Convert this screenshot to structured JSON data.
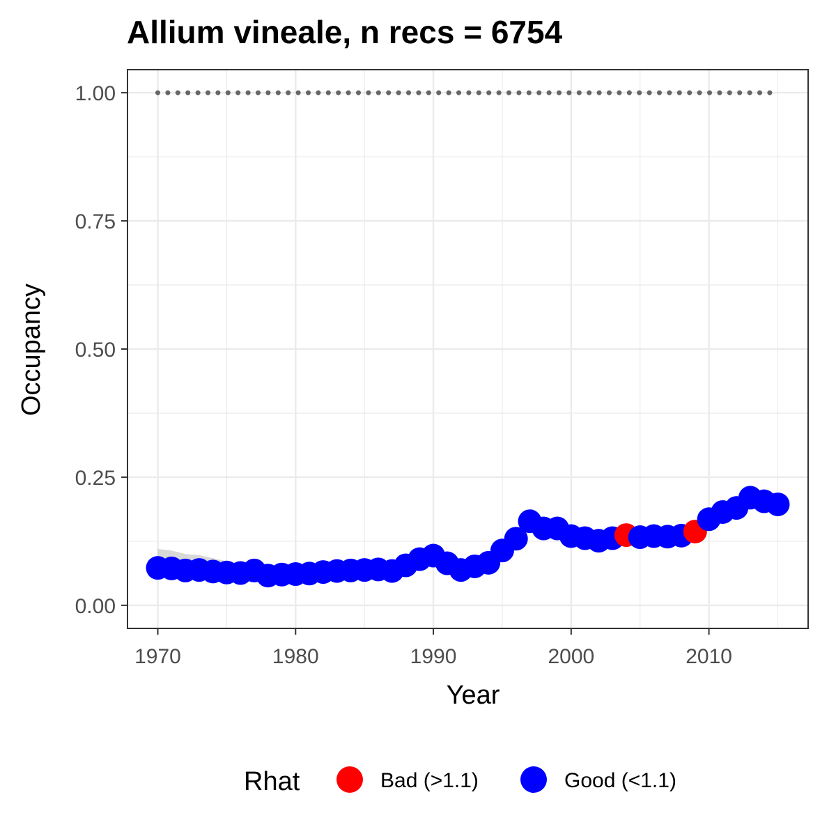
{
  "chart_data": {
    "type": "line",
    "title": "Allium vineale, n recs = 6754",
    "xlabel": "Year",
    "ylabel": "Occupancy",
    "xlim": [
      1967.8,
      2017.2
    ],
    "ylim": [
      -0.045,
      1.045
    ],
    "x_ticks": [
      1970,
      1980,
      1990,
      2000,
      2010
    ],
    "x_tick_labels": [
      "1970",
      "1980",
      "1990",
      "2000",
      "2010"
    ],
    "y_ticks": [
      0,
      0.25,
      0.5,
      0.75,
      1
    ],
    "y_tick_labels": [
      "0.00",
      "0.25",
      "0.50",
      "0.75",
      "1.00"
    ],
    "grid": true,
    "legend": {
      "title": "Rhat",
      "position": "bottom",
      "entries": [
        {
          "key": "bad",
          "label": "Bad (>1.1)",
          "color": "#ff0000"
        },
        {
          "key": "good",
          "label": "Good (<1.1)",
          "color": "#0000ff"
        }
      ]
    },
    "colors": {
      "bad": "#ff0000",
      "good": "#0000ff",
      "reference": "#666666",
      "ribbon": "#bebebe"
    },
    "reference_line": {
      "y": 1.0,
      "x_start": 1970,
      "x_end": 2015,
      "style": "dotted"
    },
    "x": [
      1970,
      1971,
      1972,
      1973,
      1974,
      1975,
      1976,
      1977,
      1978,
      1979,
      1980,
      1981,
      1982,
      1983,
      1984,
      1985,
      1986,
      1987,
      1988,
      1989,
      1990,
      1991,
      1992,
      1993,
      1994,
      1995,
      1996,
      1997,
      1998,
      1999,
      2000,
      2001,
      2002,
      2003,
      2004,
      2005,
      2006,
      2007,
      2008,
      2009,
      2010,
      2011,
      2012,
      2013,
      2014,
      2015
    ],
    "y": [
      0.073,
      0.072,
      0.068,
      0.069,
      0.066,
      0.064,
      0.063,
      0.068,
      0.058,
      0.06,
      0.061,
      0.062,
      0.065,
      0.067,
      0.068,
      0.069,
      0.07,
      0.067,
      0.078,
      0.09,
      0.097,
      0.082,
      0.069,
      0.076,
      0.083,
      0.107,
      0.13,
      0.164,
      0.15,
      0.15,
      0.135,
      0.131,
      0.126,
      0.131,
      0.137,
      0.133,
      0.135,
      0.134,
      0.136,
      0.144,
      0.168,
      0.182,
      0.19,
      0.21,
      0.203,
      0.197
    ],
    "ribbon_upper": [
      0.11,
      0.107,
      0.1,
      0.098,
      0.092,
      0.086,
      0.082,
      0.083,
      0.072,
      0.073,
      0.073,
      0.073,
      0.075,
      0.077,
      0.077,
      0.078,
      0.079,
      0.077,
      0.087,
      0.099,
      0.106,
      0.092,
      0.079,
      0.086,
      0.093,
      0.118,
      0.142,
      0.177,
      0.163,
      0.162,
      0.147,
      0.143,
      0.138,
      0.143,
      0.15,
      0.145,
      0.147,
      0.146,
      0.148,
      0.157,
      0.18,
      0.194,
      0.202,
      0.222,
      0.214,
      0.208
    ],
    "ribbon_lower": [
      0.055,
      0.055,
      0.054,
      0.055,
      0.053,
      0.052,
      0.052,
      0.057,
      0.048,
      0.05,
      0.051,
      0.052,
      0.055,
      0.057,
      0.058,
      0.059,
      0.06,
      0.057,
      0.068,
      0.08,
      0.087,
      0.072,
      0.059,
      0.066,
      0.073,
      0.096,
      0.118,
      0.151,
      0.138,
      0.138,
      0.123,
      0.12,
      0.115,
      0.12,
      0.125,
      0.121,
      0.123,
      0.122,
      0.124,
      0.131,
      0.156,
      0.17,
      0.178,
      0.198,
      0.192,
      0.186
    ],
    "rhat": [
      "good",
      "good",
      "good",
      "good",
      "good",
      "good",
      "good",
      "good",
      "good",
      "good",
      "good",
      "good",
      "good",
      "good",
      "good",
      "good",
      "good",
      "good",
      "good",
      "good",
      "good",
      "good",
      "good",
      "good",
      "good",
      "good",
      "good",
      "good",
      "good",
      "good",
      "good",
      "good",
      "good",
      "good",
      "bad",
      "good",
      "good",
      "good",
      "good",
      "bad",
      "good",
      "good",
      "good",
      "good",
      "good",
      "good"
    ]
  }
}
